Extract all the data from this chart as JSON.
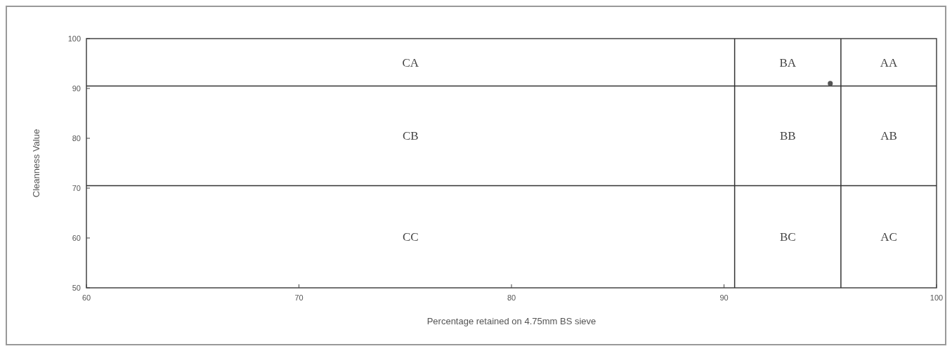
{
  "chart_data": {
    "type": "scatter",
    "xlabel": "Percentage retained on 4.75mm BS sieve",
    "ylabel": "Cleanness Value",
    "x": [
      95
    ],
    "values": [
      91
    ],
    "color": "#555555",
    "marker": "circle",
    "xlim": [
      60,
      100
    ],
    "xticks": [
      60,
      70,
      80,
      90,
      100
    ],
    "ylim": [
      50,
      100
    ],
    "yticks": [
      50,
      60,
      70,
      80,
      90,
      100
    ],
    "grid": false,
    "ref_lines": [
      {
        "axis": "x",
        "value": 90.5,
        "color": "#333333"
      },
      {
        "axis": "x",
        "value": 95.5,
        "color": "#333333"
      },
      {
        "axis": "y",
        "value": 90.5,
        "color": "#333333"
      },
      {
        "axis": "y",
        "value": 70.5,
        "color": "#333333"
      }
    ],
    "annotations": [
      "CA",
      "CB",
      "CC",
      "BA",
      "BB",
      "BC",
      "AA",
      "AB",
      "AC"
    ]
  }
}
